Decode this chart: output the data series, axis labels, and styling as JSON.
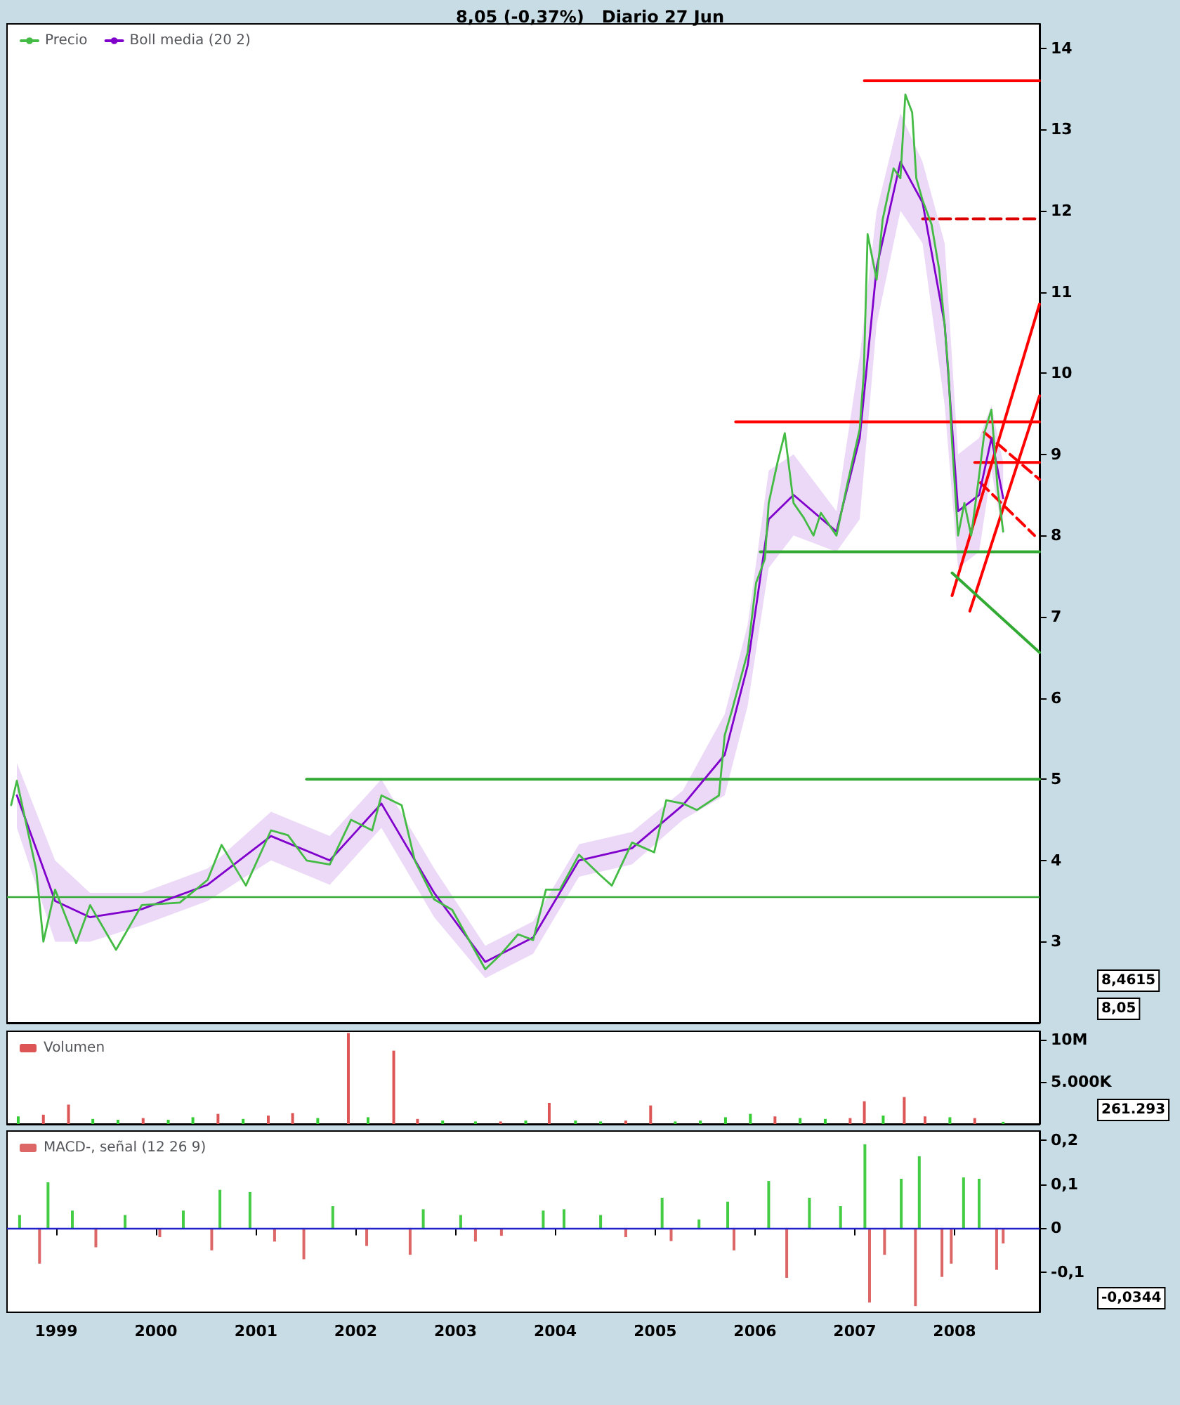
{
  "chart_data": [
    {
      "type": "line",
      "title": "8,05 (-0,37%)   Diario 27 Jun",
      "xlim": [
        "1998-07-05",
        "2008-11-07"
      ],
      "ylim": [
        2.0,
        14.3
      ],
      "yticks": [
        3,
        4,
        5,
        6,
        7,
        8,
        9,
        10,
        11,
        12,
        13,
        14
      ],
      "tick_labels": "y",
      "grid": false,
      "legend": "top left",
      "series": [
        {
          "name": "Precio",
          "color": "#44bb44",
          "x": [
            "1998-07-20",
            "1998-08-10",
            "1998-10-20",
            "1998-11-15",
            "1998-12-28",
            "1999-03-15",
            "1999-05-05",
            "1999-08-08",
            "1999-11-10",
            "2000-03-28",
            "2000-07-08",
            "2000-08-28",
            "2000-11-25",
            "2001-02-25",
            "2001-04-28",
            "2001-07-05",
            "2001-09-28",
            "2001-12-15",
            "2002-03-02",
            "2002-04-05",
            "2002-06-18",
            "2002-08-05",
            "2002-10-15",
            "2002-12-20",
            "2003-04-20",
            "2003-06-12",
            "2003-08-18",
            "2003-10-12",
            "2003-11-28",
            "2004-01-18",
            "2004-03-28",
            "2004-06-10",
            "2004-07-26",
            "2004-10-08",
            "2004-12-28",
            "2005-02-10",
            "2005-04-12",
            "2005-06-02",
            "2005-08-22",
            "2005-09-12",
            "2005-10-08",
            "2005-12-05",
            "2006-01-05",
            "2006-02-06",
            "2006-02-20",
            "2006-03-25",
            "2006-04-20",
            "2006-05-22",
            "2006-06-28",
            "2006-08-03",
            "2006-08-30",
            "2006-10-26",
            "2006-12-04",
            "2007-01-19",
            "2007-02-03",
            "2007-02-17",
            "2007-03-22",
            "2007-04-13",
            "2007-05-23",
            "2007-06-17",
            "2007-07-05",
            "2007-07-30",
            "2007-08-14",
            "2007-09-06",
            "2007-10-09",
            "2007-11-06",
            "2007-11-26",
            "2007-12-10",
            "2007-12-23",
            "2008-01-14",
            "2008-02-06",
            "2008-03-02",
            "2008-03-31",
            "2008-04-19",
            "2008-05-15",
            "2008-06-07",
            "2008-06-27"
          ],
          "values": [
            4.68,
            4.98,
            3.88,
            3.0,
            3.64,
            2.98,
            3.45,
            2.9,
            3.45,
            3.48,
            3.76,
            4.19,
            3.69,
            4.37,
            4.31,
            4.0,
            3.95,
            4.5,
            4.37,
            4.8,
            4.68,
            4.0,
            3.52,
            3.39,
            2.66,
            2.83,
            3.09,
            3.02,
            3.64,
            3.64,
            4.07,
            3.83,
            3.69,
            4.22,
            4.1,
            4.74,
            4.7,
            4.62,
            4.8,
            5.54,
            5.84,
            6.56,
            7.42,
            7.71,
            8.4,
            8.91,
            9.26,
            8.4,
            8.22,
            8.0,
            8.28,
            8.0,
            8.62,
            9.31,
            10.0,
            11.71,
            11.15,
            11.89,
            12.52,
            12.4,
            13.43,
            13.21,
            12.4,
            12.13,
            11.83,
            11.27,
            10.58,
            10.0,
            9.14,
            8.0,
            8.4,
            8.0,
            8.74,
            9.26,
            9.55,
            8.57,
            8.05
          ]
        },
        {
          "name": "Boll media (20 2)",
          "color": "#8000cc",
          "x": [
            "1998-08-10",
            "1998-12-28",
            "1999-05-05",
            "1999-11-10",
            "2000-07-08",
            "2001-02-25",
            "2001-09-28",
            "2002-04-05",
            "2002-10-15",
            "2003-04-20",
            "2003-10-12",
            "2004-03-28",
            "2004-10-08",
            "2005-04-12",
            "2005-09-12",
            "2005-12-05",
            "2006-02-20",
            "2006-05-22",
            "2006-10-26",
            "2007-01-19",
            "2007-03-22",
            "2007-06-17",
            "2007-09-06",
            "2007-11-26",
            "2008-01-14",
            "2008-03-31",
            "2008-05-15",
            "2008-06-27"
          ],
          "values": [
            4.8,
            3.5,
            3.3,
            3.4,
            3.7,
            4.3,
            4.0,
            4.7,
            3.6,
            2.75,
            3.05,
            4.0,
            4.15,
            4.68,
            5.3,
            6.4,
            8.2,
            8.5,
            8.05,
            9.2,
            11.3,
            12.6,
            12.1,
            10.6,
            8.3,
            8.5,
            9.2,
            8.4615
          ],
          "lower": [
            4.4,
            3.0,
            3.0,
            3.2,
            3.5,
            4.0,
            3.7,
            4.4,
            3.3,
            2.55,
            2.85,
            3.8,
            3.95,
            4.5,
            4.8,
            5.9,
            7.6,
            8.0,
            7.8,
            8.2,
            10.6,
            12.0,
            11.6,
            9.6,
            7.6,
            7.8,
            8.8,
            8.0
          ],
          "upper": [
            5.2,
            4.0,
            3.6,
            3.6,
            3.9,
            4.6,
            4.3,
            5.0,
            3.9,
            2.95,
            3.25,
            4.2,
            4.35,
            4.86,
            5.8,
            6.9,
            8.8,
            9.0,
            8.3,
            10.2,
            12.0,
            13.2,
            12.6,
            11.6,
            9.0,
            9.2,
            9.6,
            8.9
          ]
        },
        {
          "color": "#ff0000",
          "x": [
            "2007-02-05",
            "2008-11-07"
          ],
          "values": [
            13.6,
            13.6
          ]
        },
        {
          "color": "#ff0000",
          "x": [
            "2005-10-22",
            "2008-11-07"
          ],
          "values": [
            9.4,
            9.4
          ]
        },
        {
          "color": "#dd0000",
          "line_style": "dashed",
          "x": [
            "2007-09-06",
            "2008-11-07"
          ],
          "values": [
            11.9,
            11.9
          ]
        },
        {
          "color": "#33aa33",
          "x": [
            "2006-01-20",
            "2008-11-07"
          ],
          "values": [
            7.8,
            7.8
          ]
        },
        {
          "color": "#33aa33",
          "x": [
            "2001-07-05",
            "2008-11-07"
          ],
          "values": [
            5.0,
            5.0
          ]
        },
        {
          "color": "#ff0000",
          "x": [
            "2007-12-23",
            "2008-11-07"
          ],
          "values": [
            7.26,
            10.85
          ]
        },
        {
          "color": "#ff0000",
          "x": [
            "2008-02-26",
            "2008-11-07"
          ],
          "values": [
            7.07,
            9.72
          ]
        },
        {
          "color": "#ff0000",
          "line_style": "dashed",
          "x": [
            "2008-04-19",
            "2008-11-07"
          ],
          "values": [
            9.27,
            8.69
          ]
        },
        {
          "color": "#ff0000",
          "line_style": "dashed",
          "x": [
            "2008-04-05",
            "2008-10-20"
          ],
          "values": [
            8.65,
            8.0
          ]
        },
        {
          "color": "#ff0000",
          "x": [
            "2008-03-15",
            "2008-11-07"
          ],
          "values": [
            8.9,
            8.9
          ]
        },
        {
          "color": "#33aa33",
          "x": [
            "2007-12-23",
            "2008-11-07"
          ],
          "values": [
            7.54,
            6.56
          ]
        }
      ],
      "ref_lines": [
        {
          "axis": "y",
          "value": 3.55,
          "color": "#33aa33"
        }
      ],
      "annotations": [
        "8,05",
        "8,4615"
      ]
    },
    {
      "type": "bar",
      "xlim": [
        "1998-07-05",
        "2008-11-07"
      ],
      "ylim": [
        0,
        11000000
      ],
      "yticks": [
        {
          "value": 5000000,
          "label": "5.000K"
        },
        {
          "value": 10000000,
          "label": "10M"
        }
      ],
      "tick_labels": "y",
      "grid": false,
      "legend": "top left",
      "series": [
        {
          "name": "Volumen",
          "color": "#dd5555",
          "x": [
            "1998-08-15",
            "1998-11-15",
            "1999-02-15",
            "1999-05-15",
            "1999-08-15",
            "1999-11-15",
            "2000-02-15",
            "2000-05-15",
            "2000-08-15",
            "2000-11-15",
            "2001-02-15",
            "2001-05-15",
            "2001-08-15",
            "2001-12-05",
            "2002-02-15",
            "2002-05-20",
            "2002-08-15",
            "2002-11-15",
            "2003-03-15",
            "2003-06-15",
            "2003-09-15",
            "2003-12-10",
            "2004-03-15",
            "2004-06-15",
            "2004-09-15",
            "2004-12-15",
            "2005-03-15",
            "2005-06-15",
            "2005-09-15",
            "2005-12-15",
            "2006-03-15",
            "2006-06-15",
            "2006-09-15",
            "2006-12-15",
            "2007-02-05",
            "2007-04-15",
            "2007-07-01",
            "2007-09-15",
            "2007-12-15",
            "2008-03-15",
            "2008-06-27"
          ],
          "values": [
            900000,
            1100000,
            2300000,
            600000,
            500000,
            700000,
            500000,
            800000,
            1200000,
            600000,
            1000000,
            1300000,
            700000,
            10800000,
            800000,
            8700000,
            600000,
            400000,
            300000,
            300000,
            400000,
            2500000,
            400000,
            300000,
            400000,
            2200000,
            300000,
            400000,
            800000,
            1200000,
            900000,
            700000,
            600000,
            700000,
            2700000,
            1000000,
            3200000,
            900000,
            800000,
            700000,
            261293
          ],
          "colors": [
            "#33cc33",
            "#dd5555",
            "#dd5555",
            "#33cc33",
            "#33cc33",
            "#dd5555",
            "#33cc33",
            "#33cc33",
            "#dd5555",
            "#33cc33",
            "#dd5555",
            "#dd5555",
            "#33cc33",
            "#dd5555",
            "#33cc33",
            "#dd5555",
            "#dd5555",
            "#33cc33",
            "#33cc33",
            "#dd5555",
            "#33cc33",
            "#dd5555",
            "#33cc33",
            "#33cc33",
            "#dd5555",
            "#dd5555",
            "#33cc33",
            "#33cc33",
            "#33cc33",
            "#33cc33",
            "#dd5555",
            "#33cc33",
            "#33cc33",
            "#dd5555",
            "#dd5555",
            "#33cc33",
            "#dd5555",
            "#dd5555",
            "#33cc33",
            "#dd5555",
            "#33cc33"
          ]
        }
      ],
      "annotations": [
        "261.293"
      ]
    },
    {
      "type": "bar",
      "xlim": [
        "1998-07-05",
        "2008-11-07"
      ],
      "xticks": [
        "1999",
        "2000",
        "2001",
        "2002",
        "2003",
        "2004",
        "2005",
        "2006",
        "2007",
        "2008"
      ],
      "ylim": [
        -0.19,
        0.22
      ],
      "yticks": [
        {
          "value": -0.1,
          "label": "-0,1"
        },
        0,
        {
          "value": 0.1,
          "label": "0,1"
        },
        {
          "value": 0.2,
          "label": "0,2"
        }
      ],
      "grid": false,
      "legend": "top left",
      "series": [
        {
          "name": "MACD-, señal (12 26 9)",
          "color": "#dd6666",
          "x": [
            "1998-08-20",
            "1998-11-01",
            "1998-12-02",
            "1999-03-01",
            "1999-05-26",
            "1999-09-10",
            "2000-01-15",
            "2000-04-10",
            "2000-07-23",
            "2000-08-22",
            "2000-12-10",
            "2001-03-10",
            "2001-06-25",
            "2001-10-09",
            "2002-02-10",
            "2002-07-19",
            "2002-09-05",
            "2003-01-20",
            "2003-03-15",
            "2003-06-18",
            "2003-11-18",
            "2004-02-02",
            "2004-06-15",
            "2004-09-15",
            "2005-01-26",
            "2005-02-28",
            "2005-06-10",
            "2005-09-23",
            "2005-10-16",
            "2006-02-20",
            "2006-04-27",
            "2006-07-19",
            "2006-11-10",
            "2007-02-07",
            "2007-02-24",
            "2007-04-20",
            "2007-06-20",
            "2007-08-11",
            "2007-08-25",
            "2007-11-16",
            "2007-12-20",
            "2008-02-03",
            "2008-03-31",
            "2008-06-03",
            "2008-06-27"
          ],
          "values": [
            0.03,
            -0.08,
            0.104,
            0.04,
            -0.043,
            0.03,
            -0.02,
            0.04,
            -0.05,
            0.087,
            0.082,
            -0.03,
            -0.07,
            0.05,
            -0.04,
            -0.06,
            0.043,
            0.03,
            -0.03,
            -0.017,
            0.04,
            0.043,
            0.03,
            -0.02,
            0.069,
            -0.029,
            0.02,
            0.06,
            -0.05,
            0.107,
            -0.112,
            0.069,
            0.05,
            0.19,
            -0.168,
            -0.06,
            0.112,
            -0.176,
            0.163,
            -0.11,
            -0.08,
            0.115,
            0.112,
            -0.094,
            -0.0344
          ],
          "colors": [
            "#44cc44",
            "#dd6666",
            "#44cc44",
            "#44cc44",
            "#dd6666",
            "#44cc44",
            "#dd6666",
            "#44cc44",
            "#dd6666",
            "#44cc44",
            "#44cc44",
            "#dd6666",
            "#dd6666",
            "#44cc44",
            "#dd6666",
            "#dd6666",
            "#44cc44",
            "#44cc44",
            "#dd6666",
            "#dd6666",
            "#44cc44",
            "#44cc44",
            "#44cc44",
            "#dd6666",
            "#44cc44",
            "#dd6666",
            "#44cc44",
            "#44cc44",
            "#dd6666",
            "#44cc44",
            "#dd6666",
            "#44cc44",
            "#44cc44",
            "#44cc44",
            "#dd6666",
            "#dd6666",
            "#44cc44",
            "#dd6666",
            "#44cc44",
            "#dd6666",
            "#dd6666",
            "#44cc44",
            "#44cc44",
            "#dd6666",
            "#dd6666"
          ]
        }
      ],
      "ref_lines": [
        {
          "axis": "y",
          "value": 0,
          "color": "#2222cc"
        }
      ],
      "annotations": [
        "-0,0344"
      ]
    }
  ]
}
